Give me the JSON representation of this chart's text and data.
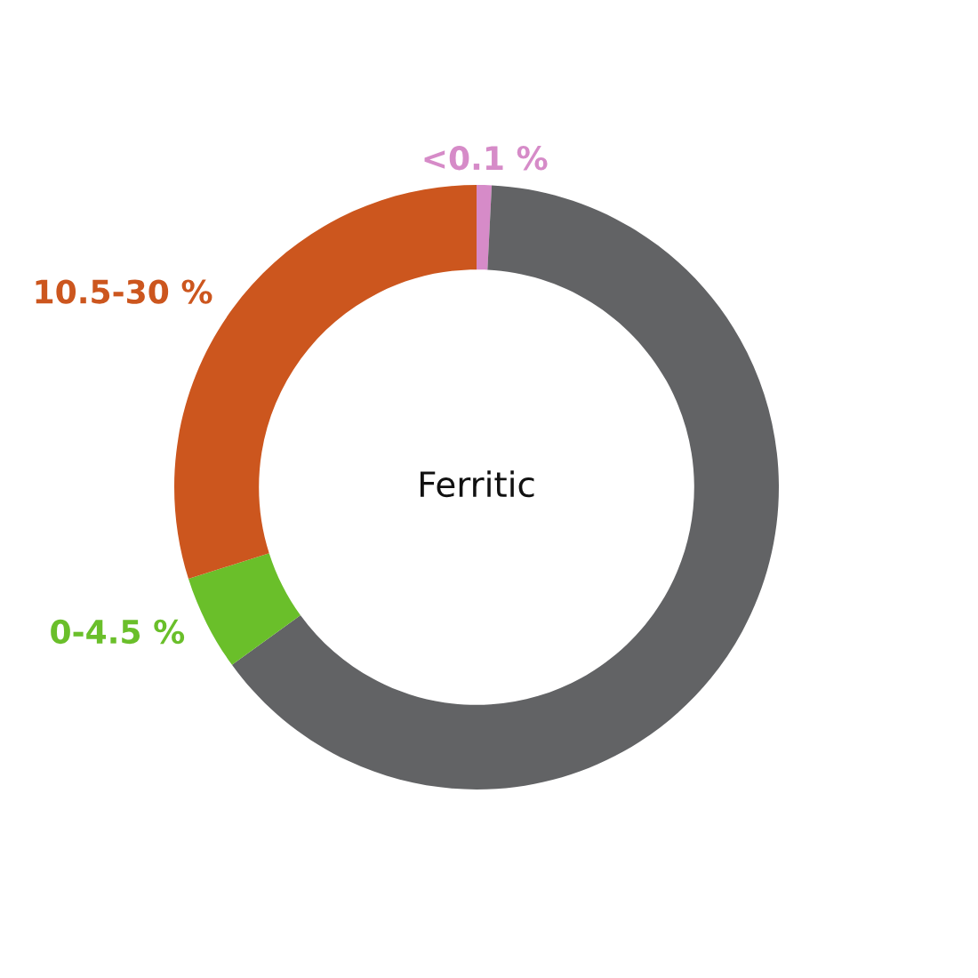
{
  "chart_data": {
    "type": "donut",
    "title": "Ferritic",
    "categories": [
      "<0.1 %",
      null,
      "0-4.5 %",
      "10.5-30 %"
    ],
    "values": [
      0.8,
      64.2,
      5.1,
      29.9
    ],
    "colors": [
      "#d68bc8",
      "#626365",
      "#6abf2a",
      "#cc561e"
    ]
  }
}
